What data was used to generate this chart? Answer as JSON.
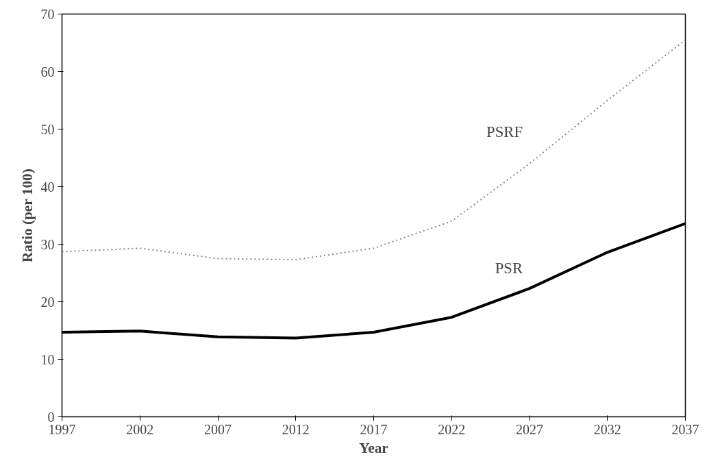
{
  "chart_data": {
    "type": "line",
    "xlabel": "Year",
    "ylabel": "Ratio (per 100)",
    "x": [
      1997,
      2002,
      2007,
      2012,
      2017,
      2022,
      2027,
      2032,
      2037
    ],
    "series": [
      {
        "name": "PSRF",
        "color": "#888888",
        "line_style": "dotted",
        "values": [
          28.7,
          29.3,
          27.5,
          27.3,
          29.3,
          34,
          44,
          55,
          65.5
        ]
      },
      {
        "name": "PSR",
        "color": "#000000",
        "line_style": "solid",
        "values": [
          14.7,
          14.9,
          13.9,
          13.7,
          14.7,
          17.3,
          22.3,
          28.6,
          33.6
        ]
      }
    ],
    "xlim": [
      1997,
      2037
    ],
    "xticks": [
      1997,
      2002,
      2007,
      2012,
      2017,
      2022,
      2027,
      2032,
      2037
    ],
    "ylim": [
      0,
      70
    ],
    "yticks": [
      0,
      10,
      20,
      30,
      40,
      50,
      60,
      70
    ],
    "grid": false,
    "legend": false,
    "marker": "none"
  }
}
